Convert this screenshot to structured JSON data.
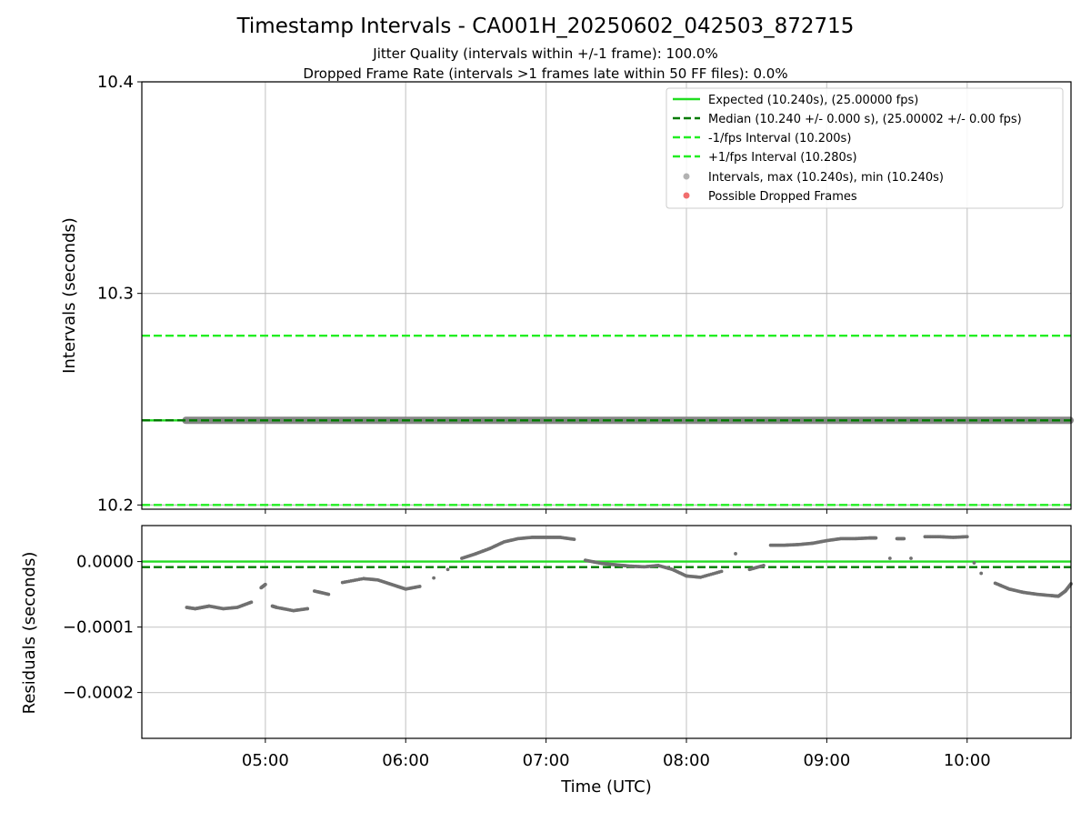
{
  "chart_data": [
    {
      "type": "scatter",
      "panel": "intervals",
      "title": "Timestamp Intervals - CA001H_20250602_042503_872715",
      "subtitle_1": "Jitter Quality (intervals within +/-1 frame): 100.0%",
      "subtitle_2": "Dropped Frame Rate (intervals >1 frames late within 50 FF files): 0.0%",
      "ylabel": "Intervals (seconds)",
      "ylim": [
        10.198,
        10.4
      ],
      "yticks": [
        {
          "value": 10.2,
          "label": "10.2"
        },
        {
          "value": 10.3,
          "label": "10.3"
        },
        {
          "value": 10.4,
          "label": "10.4"
        }
      ],
      "xlim_hours": [
        4.12,
        10.74
      ],
      "grid": true,
      "legend_placement": "upper right",
      "reference_lines": [
        {
          "name": "Expected (10.240s), (25.00000 fps)",
          "value": 10.24,
          "style": "solid",
          "color": "#22dd22"
        },
        {
          "name": "Median (10.240 +/- 0.000 s), (25.00002 +/- 0.00 fps)",
          "value": 10.24,
          "style": "dashed",
          "color": "#007a00"
        },
        {
          "name": "-1/fps Interval (10.200s)",
          "value": 10.2,
          "style": "dashed",
          "color": "#22ee22"
        },
        {
          "name": "+1/fps Interval (10.280s)",
          "value": 10.28,
          "style": "dashed",
          "color": "#22ee22"
        }
      ],
      "series": [
        {
          "name": "Intervals, max (10.240s), min (10.240s)",
          "color": "#808080",
          "x_start": "04:26",
          "x_end": "10:44",
          "value": 10.24
        },
        {
          "name": "Possible Dropped Frames",
          "color": "#ee5555",
          "points": []
        }
      ]
    },
    {
      "type": "scatter",
      "panel": "residuals",
      "ylabel": "Residuals (seconds)",
      "xlabel": "Time (UTC)",
      "ylim": [
        -0.00027,
        5.5e-05
      ],
      "yticks": [
        {
          "value": 0.0,
          "label": "0.0000"
        },
        {
          "value": -0.0001,
          "label": "−0.0001"
        },
        {
          "value": -0.0002,
          "label": "−0.0002"
        }
      ],
      "xlim_hours": [
        4.12,
        10.74
      ],
      "xticks": [
        {
          "value": 5,
          "label": "05:00"
        },
        {
          "value": 6,
          "label": "06:00"
        },
        {
          "value": 7,
          "label": "07:00"
        },
        {
          "value": 8,
          "label": "08:00"
        },
        {
          "value": 9,
          "label": "09:00"
        },
        {
          "value": 10,
          "label": "10:00"
        }
      ],
      "grid": true,
      "reference_lines": [
        {
          "value": 0.0,
          "style": "solid",
          "color": "#22dd22"
        },
        {
          "value": -8.5e-06,
          "style": "dashed",
          "color": "#007a00"
        }
      ],
      "series": [
        {
          "name": "Residuals",
          "color": "#707070",
          "x": [
            4.44,
            4.5,
            4.55,
            4.6,
            4.7,
            4.8,
            4.9,
            4.97,
            5.0,
            5.05,
            5.08,
            5.2,
            5.3,
            5.35,
            5.45,
            5.55,
            5.7,
            5.8,
            5.9,
            6.0,
            6.1,
            6.2,
            6.3,
            6.4,
            6.5,
            6.6,
            6.7,
            6.8,
            6.9,
            7.0,
            7.1,
            7.2,
            7.28,
            7.4,
            7.5,
            7.6,
            7.7,
            7.8,
            7.9,
            8.0,
            8.1,
            8.25,
            8.35,
            8.45,
            8.55,
            8.6,
            8.7,
            8.8,
            8.9,
            9.0,
            9.1,
            9.2,
            9.3,
            9.35,
            9.45,
            9.5,
            9.55,
            9.6,
            9.7,
            9.8,
            9.9,
            10.0,
            10.05,
            10.1,
            10.2,
            10.3,
            10.4,
            10.5,
            10.6,
            10.65,
            10.7,
            10.74
          ],
          "y": [
            -7e-05,
            -7.2e-05,
            -7e-05,
            -6.8e-05,
            -7.2e-05,
            -7e-05,
            -6.2e-05,
            -4e-05,
            -3.5e-05,
            -6.8e-05,
            -7e-05,
            -7.5e-05,
            -7.2e-05,
            -4.5e-05,
            -5e-05,
            -3.2e-05,
            -2.6e-05,
            -2.8e-05,
            -3.5e-05,
            -4.2e-05,
            -3.8e-05,
            -2.5e-05,
            -1.2e-05,
            5e-06,
            1.2e-05,
            2e-05,
            3e-05,
            3.5e-05,
            3.7e-05,
            3.7e-05,
            3.7e-05,
            3.4e-05,
            2e-06,
            -3e-06,
            -5e-06,
            -7e-06,
            -8e-06,
            -6e-06,
            -1.2e-05,
            -2.2e-05,
            -2.4e-05,
            -1.5e-05,
            1.2e-05,
            -1.2e-05,
            -6e-06,
            2.5e-05,
            2.5e-05,
            2.6e-05,
            2.8e-05,
            3.2e-05,
            3.5e-05,
            3.5e-05,
            3.6e-05,
            3.6e-05,
            5e-06,
            3.5e-05,
            3.5e-05,
            5e-06,
            3.8e-05,
            3.8e-05,
            3.7e-05,
            3.8e-05,
            -2e-06,
            -1.8e-05,
            -3.3e-05,
            -4.2e-05,
            -4.7e-05,
            -5e-05,
            -5.2e-05,
            -5.3e-05,
            -4.5e-05,
            -3.4e-05
          ]
        }
      ]
    }
  ]
}
